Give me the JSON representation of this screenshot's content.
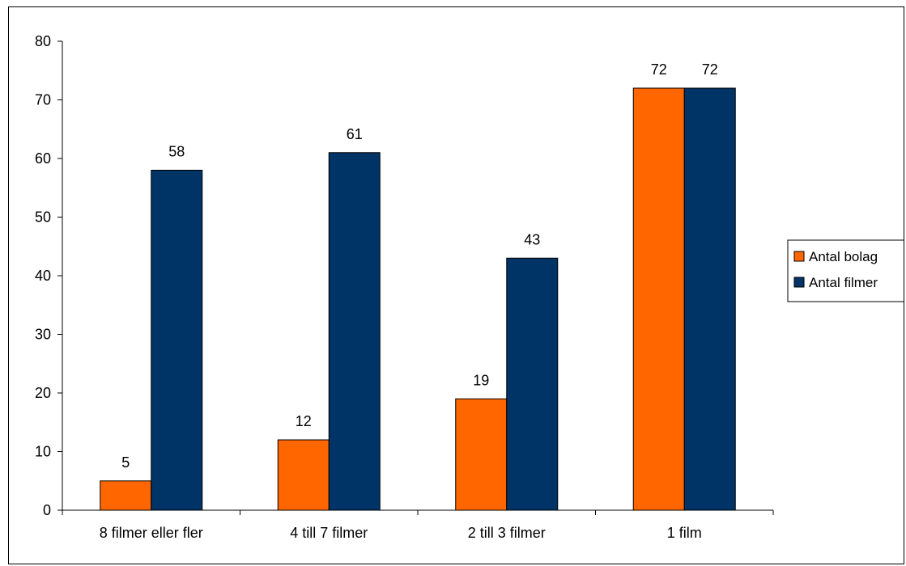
{
  "chart_data": {
    "type": "bar",
    "title": "",
    "xlabel": "",
    "ylabel": "",
    "categories": [
      "8 filmer eller fler",
      "4 till 7 filmer",
      "2 till 3 filmer",
      "1 film"
    ],
    "series": [
      {
        "name": "Antal bolag",
        "values": [
          5,
          12,
          19,
          72
        ],
        "color": "#FF6600"
      },
      {
        "name": "Antal filmer",
        "values": [
          58,
          61,
          43,
          72
        ],
        "color": "#003366"
      }
    ],
    "ylim": [
      0,
      80
    ],
    "yticks": [
      0,
      10,
      20,
      30,
      40,
      50,
      60,
      70,
      80
    ],
    "grid": false,
    "legend": "right",
    "data_labels": true
  }
}
